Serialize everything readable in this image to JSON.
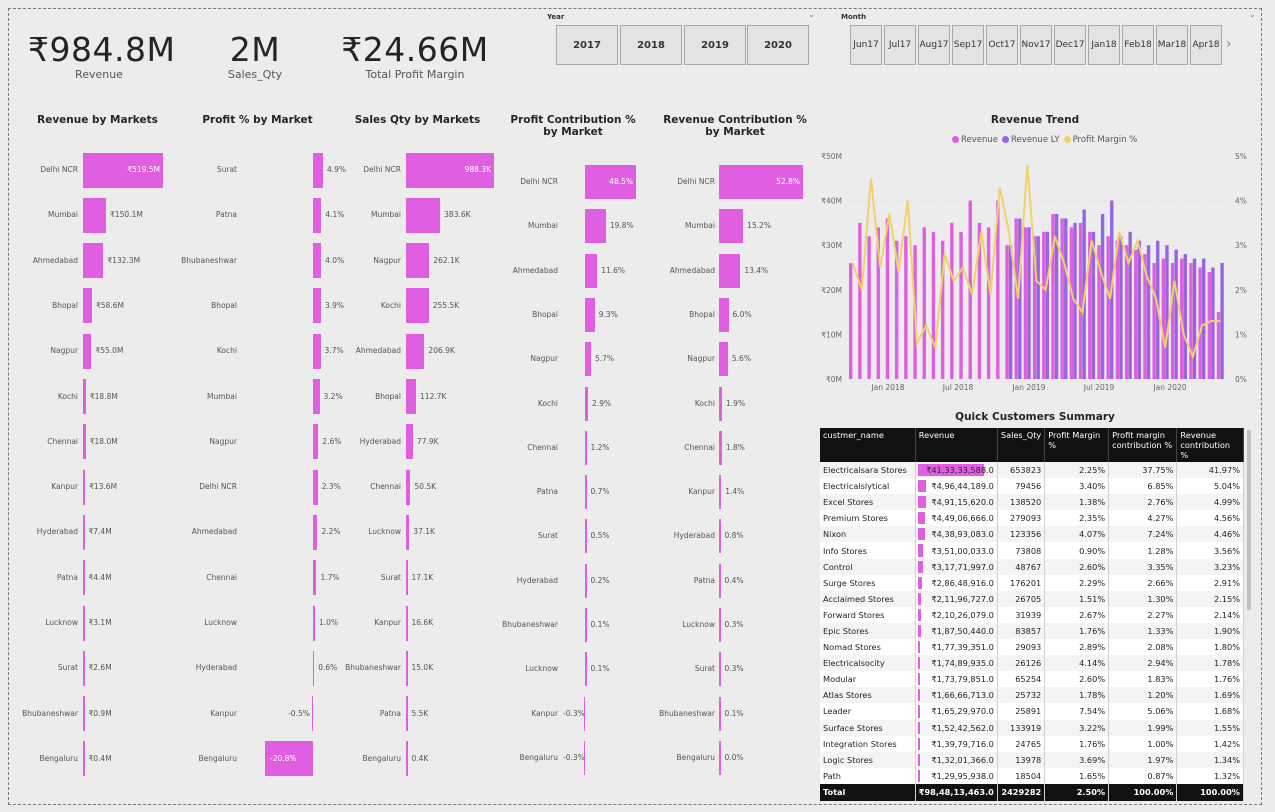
{
  "kpis": [
    {
      "value": "₹984.8M",
      "label": "Revenue"
    },
    {
      "value": "2M",
      "label": "Sales_Qty"
    },
    {
      "value": "₹24.66M",
      "label": "Total Profit Margin"
    }
  ],
  "year_slicer": {
    "title": "Year",
    "options": [
      "2017",
      "2018",
      "2019",
      "2020"
    ]
  },
  "month_slicer": {
    "title": "Month",
    "options": [
      [
        "Jun",
        "17"
      ],
      [
        "Jul",
        "17"
      ],
      [
        "Aug",
        "17"
      ],
      [
        "Sep",
        "17"
      ],
      [
        "Oct",
        "17"
      ],
      [
        "Nov",
        "17"
      ],
      [
        "Dec",
        "17"
      ],
      [
        "Jan",
        "18"
      ],
      [
        "Feb",
        "18"
      ],
      [
        "Mar",
        "18"
      ],
      [
        "Apr",
        "18"
      ]
    ]
  },
  "colors": {
    "revenue": "#e05fe0",
    "revenue_ly": "#9467e0",
    "profit_margin": "#efd26b"
  },
  "chart_data": [
    {
      "type": "bar",
      "orientation": "horizontal",
      "title": "Revenue by Markets",
      "categories": [
        "Delhi NCR",
        "Mumbai",
        "Ahmedabad",
        "Bhopal",
        "Nagpur",
        "Kochi",
        "Chennai",
        "Kanpur",
        "Hyderabad",
        "Patna",
        "Lucknow",
        "Surat",
        "Bhubaneshwar",
        "Bengaluru"
      ],
      "values": [
        519.5,
        150.1,
        132.3,
        58.6,
        55.0,
        18.8,
        18.0,
        13.6,
        7.4,
        4.4,
        3.1,
        2.6,
        0.9,
        0.4
      ],
      "labels": [
        "₹519.5M",
        "₹150.1M",
        "₹132.3M",
        "₹58.6M",
        "₹55.0M",
        "₹18.8M",
        "₹18.0M",
        "₹13.6M",
        "₹7.4M",
        "₹4.4M",
        "₹3.1M",
        "₹2.6M",
        "₹0.9M",
        "₹0.4M"
      ]
    },
    {
      "type": "bar",
      "orientation": "horizontal",
      "title": "Profit % by Market",
      "categories": [
        "Surat",
        "Patna",
        "Bhubaneshwar",
        "Bhopal",
        "Kochi",
        "Mumbai",
        "Nagpur",
        "Delhi NCR",
        "Ahmedabad",
        "Chennai",
        "Lucknow",
        "Hyderabad",
        "Kanpur",
        "Bengaluru"
      ],
      "values": [
        4.9,
        4.1,
        4.0,
        3.9,
        3.7,
        3.2,
        2.6,
        2.3,
        2.2,
        1.7,
        1.0,
        0.6,
        -0.5,
        -20.8
      ],
      "labels": [
        "4.9%",
        "4.1%",
        "4.0%",
        "3.9%",
        "3.7%",
        "3.2%",
        "2.6%",
        "2.3%",
        "2.2%",
        "1.7%",
        "1.0%",
        "0.6%",
        "-0.5%",
        "-20.8%"
      ]
    },
    {
      "type": "bar",
      "orientation": "horizontal",
      "title": "Sales Qty by Markets",
      "categories": [
        "Delhi NCR",
        "Mumbai",
        "Nagpur",
        "Kochi",
        "Ahmedabad",
        "Bhopal",
        "Hyderabad",
        "Chennai",
        "Lucknow",
        "Surat",
        "Kanpur",
        "Bhubaneshwar",
        "Patna",
        "Bengaluru"
      ],
      "values": [
        988.3,
        383.6,
        262.1,
        255.5,
        206.9,
        112.7,
        77.9,
        50.5,
        37.1,
        17.1,
        16.6,
        15.0,
        5.5,
        0.4
      ],
      "labels": [
        "988.3K",
        "383.6K",
        "262.1K",
        "255.5K",
        "206.9K",
        "112.7K",
        "77.9K",
        "50.5K",
        "37.1K",
        "17.1K",
        "16.6K",
        "15.0K",
        "5.5K",
        "0.4K"
      ]
    },
    {
      "type": "bar",
      "orientation": "horizontal",
      "title": "Profit Contribution % by Market",
      "categories": [
        "Delhi NCR",
        "Mumbai",
        "Ahmedabad",
        "Bhopal",
        "Nagpur",
        "Kochi",
        "Chennai",
        "Patna",
        "Surat",
        "Hyderabad",
        "Bhubaneshwar",
        "Lucknow",
        "Kanpur",
        "Bengaluru"
      ],
      "values": [
        48.5,
        19.8,
        11.6,
        9.3,
        5.7,
        2.9,
        1.2,
        0.7,
        0.5,
        0.2,
        0.1,
        0.1,
        -0.3,
        -0.3
      ],
      "labels": [
        "48.5%",
        "19.8%",
        "11.6%",
        "9.3%",
        "5.7%",
        "2.9%",
        "1.2%",
        "0.7%",
        "0.5%",
        "0.2%",
        "0.1%",
        "0.1%",
        "-0.3%",
        "-0.3%"
      ]
    },
    {
      "type": "bar",
      "orientation": "horizontal",
      "title": "Revenue Contribution % by Market",
      "categories": [
        "Delhi NCR",
        "Mumbai",
        "Ahmedabad",
        "Bhopal",
        "Nagpur",
        "Kochi",
        "Chennai",
        "Kanpur",
        "Hyderabad",
        "Patna",
        "Lucknow",
        "Surat",
        "Bhubaneshwar",
        "Bengaluru"
      ],
      "values": [
        52.8,
        15.2,
        13.4,
        6.0,
        5.6,
        1.9,
        1.8,
        1.4,
        0.8,
        0.4,
        0.3,
        0.3,
        0.1,
        0.0
      ],
      "labels": [
        "52.8%",
        "15.2%",
        "13.4%",
        "6.0%",
        "5.6%",
        "1.9%",
        "1.8%",
        "1.4%",
        "0.8%",
        "0.4%",
        "0.3%",
        "0.3%",
        "0.1%",
        "0.0%"
      ]
    },
    {
      "type": "bar",
      "title": "Revenue Trend",
      "legend": [
        "Revenue",
        "Revenue LY",
        "Profit Margin %"
      ],
      "legend_position": "top-center",
      "y_ticks": [
        "₹0M",
        "₹10M",
        "₹20M",
        "₹30M",
        "₹40M",
        "₹50M"
      ],
      "y2_ticks": [
        "0%",
        "1%",
        "2%",
        "3%",
        "4%",
        "5%"
      ],
      "x_ticks": [
        "Jan 2018",
        "Jul 2018",
        "Jan 2019",
        "Jul 2019",
        "Jan 2020"
      ],
      "ylim": [
        0,
        50
      ],
      "y2lim": [
        0,
        5
      ],
      "series": [
        {
          "name": "Revenue",
          "type": "bar",
          "values": [
            26,
            35,
            32,
            34,
            36,
            31,
            32,
            30,
            34,
            33,
            31,
            35,
            33,
            40,
            35,
            34,
            40,
            30,
            36,
            34,
            32,
            33,
            37,
            36,
            34,
            35,
            33,
            30,
            32,
            31,
            30,
            29,
            28,
            26,
            27,
            26,
            27,
            26,
            25,
            24,
            15
          ]
        },
        {
          "name": "Revenue LY",
          "type": "bar",
          "values": [
            null,
            null,
            null,
            null,
            null,
            null,
            null,
            null,
            null,
            null,
            null,
            null,
            null,
            null,
            null,
            null,
            null,
            30,
            36,
            34,
            32,
            33,
            37,
            36,
            35,
            38,
            33,
            37,
            40,
            32,
            33,
            31,
            30,
            31,
            30,
            29,
            28,
            27,
            27,
            25,
            26
          ]
        },
        {
          "name": "Profit Margin %",
          "type": "line",
          "values": [
            2.6,
            2.0,
            4.5,
            2.5,
            3.7,
            2.4,
            4.0,
            0.8,
            1.2,
            0.7,
            2.8,
            2.2,
            2.5,
            1.9,
            3.3,
            1.9,
            4.3,
            3.3,
            1.8,
            4.8,
            2.2,
            2.0,
            3.2,
            2.6,
            1.8,
            1.5,
            3.1,
            2.4,
            1.8,
            3.3,
            2.6,
            3.1,
            2.3,
            1.8,
            0.7,
            2.2,
            1.0,
            0.5,
            1.2,
            1.3,
            1.3
          ]
        }
      ]
    }
  ],
  "summary": {
    "title": "Quick Customers Summary",
    "columns": [
      "custmer_name",
      "Revenue",
      "Sales_Qty",
      "Profit Margin %",
      "Profit margin contribution %",
      "Revenue contribution %"
    ],
    "rows": [
      [
        "Electricalsara Stores",
        "₹41,33,33,588.0",
        "653823",
        "2.25%",
        "37.75%",
        "41.97%"
      ],
      [
        "Electricalslytical",
        "₹4,96,44,189.0",
        "79456",
        "3.40%",
        "6.85%",
        "5.04%"
      ],
      [
        "Excel Stores",
        "₹4,91,15,620.0",
        "138520",
        "1.38%",
        "2.76%",
        "4.99%"
      ],
      [
        "Premium Stores",
        "₹4,49,06,666.0",
        "279093",
        "2.35%",
        "4.27%",
        "4.56%"
      ],
      [
        "Nixon",
        "₹4,38,93,083.0",
        "123356",
        "4.07%",
        "7.24%",
        "4.46%"
      ],
      [
        "Info Stores",
        "₹3,51,00,033.0",
        "73808",
        "0.90%",
        "1.28%",
        "3.56%"
      ],
      [
        "Control",
        "₹3,17,71,997.0",
        "48767",
        "2.60%",
        "3.35%",
        "3.23%"
      ],
      [
        "Surge Stores",
        "₹2,86,48,916.0",
        "176201",
        "2.29%",
        "2.66%",
        "2.91%"
      ],
      [
        "Acclaimed Stores",
        "₹2,11,96,727.0",
        "26705",
        "1.51%",
        "1.30%",
        "2.15%"
      ],
      [
        "Forward Stores",
        "₹2,10,26,079.0",
        "31939",
        "2.67%",
        "2.27%",
        "2.14%"
      ],
      [
        "Epic Stores",
        "₹1,87,50,440.0",
        "83857",
        "1.76%",
        "1.33%",
        "1.90%"
      ],
      [
        "Nomad Stores",
        "₹1,77,39,351.0",
        "29093",
        "2.89%",
        "2.08%",
        "1.80%"
      ],
      [
        "Electricalsocity",
        "₹1,74,89,935.0",
        "26126",
        "4.14%",
        "2.94%",
        "1.78%"
      ],
      [
        "Modular",
        "₹1,73,79,851.0",
        "65254",
        "2.60%",
        "1.83%",
        "1.76%"
      ],
      [
        "Atlas Stores",
        "₹1,66,66,713.0",
        "25732",
        "1.78%",
        "1.20%",
        "1.69%"
      ],
      [
        "Leader",
        "₹1,65,29,970.0",
        "25891",
        "7.54%",
        "5.06%",
        "1.68%"
      ],
      [
        "Surface Stores",
        "₹1,52,42,562.0",
        "133919",
        "3.22%",
        "1.99%",
        "1.55%"
      ],
      [
        "Integration Stores",
        "₹1,39,79,716.0",
        "24765",
        "1.76%",
        "1.00%",
        "1.42%"
      ],
      [
        "Logic Stores",
        "₹1,32,01,366.0",
        "13978",
        "3.69%",
        "1.97%",
        "1.34%"
      ],
      [
        "Path",
        "₹1,29,95,938.0",
        "18504",
        "1.65%",
        "0.87%",
        "1.32%"
      ]
    ],
    "revenue_fill": [
      1.0,
      0.12,
      0.12,
      0.11,
      0.11,
      0.08,
      0.08,
      0.07,
      0.05,
      0.05,
      0.05,
      0.04,
      0.04,
      0.04,
      0.04,
      0.04,
      0.04,
      0.03,
      0.03,
      0.03
    ],
    "total": [
      "Total",
      "₹98,48,13,463.0",
      "2429282",
      "2.50%",
      "100.00%",
      "100.00%"
    ]
  }
}
